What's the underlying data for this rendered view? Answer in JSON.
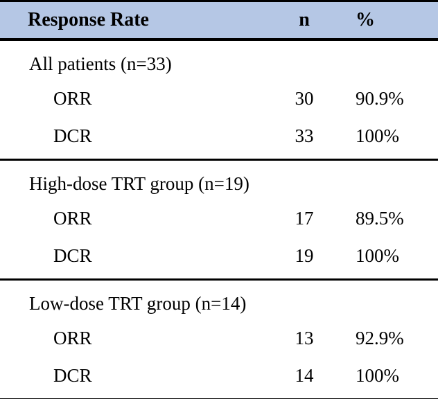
{
  "colors": {
    "header_bg": "#b5c7e5",
    "border": "#000000",
    "text": "#000000",
    "page_bg": "#ffffff"
  },
  "table": {
    "header": {
      "response_rate": "Response Rate",
      "n": "n",
      "pct": "%"
    },
    "sections": [
      {
        "label": "All patients (n=33)",
        "rows": [
          {
            "name": "ORR",
            "n": "30",
            "pct": "90.9%"
          },
          {
            "name": "DCR",
            "n": "33",
            "pct": "100%"
          }
        ]
      },
      {
        "label": "High-dose TRT group (n=19)",
        "rows": [
          {
            "name": "ORR",
            "n": "17",
            "pct": "89.5%"
          },
          {
            "name": "DCR",
            "n": "19",
            "pct": "100%"
          }
        ]
      },
      {
        "label": "Low-dose TRT group (n=14)",
        "rows": [
          {
            "name": "ORR",
            "n": "13",
            "pct": "92.9%"
          },
          {
            "name": "DCR",
            "n": "14",
            "pct": "100%"
          }
        ]
      }
    ]
  },
  "chart_data": {
    "type": "table",
    "title": "Response Rate",
    "columns": [
      "Response Rate",
      "n",
      "%"
    ],
    "groups": [
      {
        "group": "All patients",
        "group_n": 33,
        "ORR_n": 30,
        "ORR_pct": 90.9,
        "DCR_n": 33,
        "DCR_pct": 100
      },
      {
        "group": "High-dose TRT group",
        "group_n": 19,
        "ORR_n": 17,
        "ORR_pct": 89.5,
        "DCR_n": 19,
        "DCR_pct": 100
      },
      {
        "group": "Low-dose TRT group",
        "group_n": 14,
        "ORR_n": 13,
        "ORR_pct": 92.9,
        "DCR_n": 14,
        "DCR_pct": 100
      }
    ]
  }
}
